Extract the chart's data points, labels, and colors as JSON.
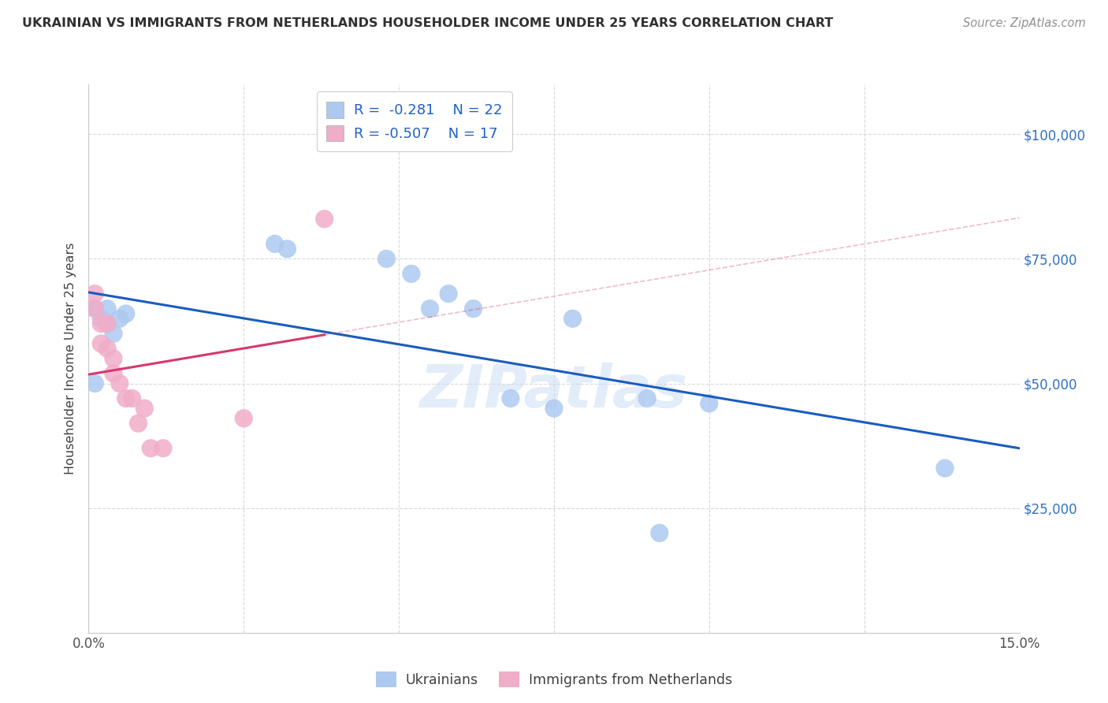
{
  "title": "UKRAINIAN VS IMMIGRANTS FROM NETHERLANDS HOUSEHOLDER INCOME UNDER 25 YEARS CORRELATION CHART",
  "source": "Source: ZipAtlas.com",
  "ylabel": "Householder Income Under 25 years",
  "xlim": [
    0.0,
    0.15
  ],
  "ylim": [
    0,
    110000
  ],
  "yticks": [
    0,
    25000,
    50000,
    75000,
    100000
  ],
  "xticks": [
    0.0,
    0.025,
    0.05,
    0.075,
    0.1,
    0.125,
    0.15
  ],
  "xtick_labels": [
    "0.0%",
    "",
    "",
    "",
    "",
    "",
    "15.0%"
  ],
  "legend_blue_R": "R =  -0.281",
  "legend_blue_N": "N = 22",
  "legend_pink_R": "R = -0.507",
  "legend_pink_N": "N = 17",
  "blue_color": "#adc9f0",
  "pink_color": "#f0adc8",
  "blue_line_color": "#1a5cbf",
  "pink_line_color": "#d63870",
  "watermark": "ZIPatlas",
  "ukrainians_x": [
    0.001,
    0.001,
    0.002,
    0.003,
    0.003,
    0.004,
    0.005,
    0.006,
    0.03,
    0.032,
    0.048,
    0.052,
    0.055,
    0.058,
    0.062,
    0.068,
    0.075,
    0.078,
    0.09,
    0.092,
    0.1,
    0.138
  ],
  "ukrainians_y": [
    50000,
    65000,
    63000,
    62000,
    65000,
    60000,
    63000,
    64000,
    78000,
    77000,
    75000,
    72000,
    65000,
    68000,
    65000,
    47000,
    45000,
    63000,
    47000,
    20000,
    46000,
    33000
  ],
  "netherlands_x": [
    0.001,
    0.001,
    0.002,
    0.002,
    0.003,
    0.003,
    0.004,
    0.004,
    0.005,
    0.006,
    0.007,
    0.008,
    0.009,
    0.01,
    0.012,
    0.025,
    0.038
  ],
  "netherlands_y": [
    68000,
    65000,
    62000,
    58000,
    62000,
    57000,
    55000,
    52000,
    50000,
    47000,
    47000,
    42000,
    45000,
    37000,
    37000,
    43000,
    83000
  ],
  "background_color": "#ffffff",
  "grid_color": "#d8d8d8"
}
